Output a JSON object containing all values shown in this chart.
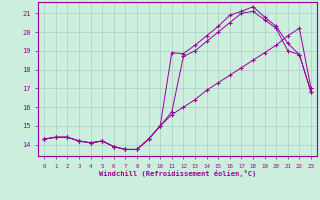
{
  "xlabel": "Windchill (Refroidissement éolien,°C)",
  "xlim": [
    -0.5,
    23.5
  ],
  "ylim": [
    13.4,
    21.6
  ],
  "xticks": [
    0,
    1,
    2,
    3,
    4,
    5,
    6,
    7,
    8,
    9,
    10,
    11,
    12,
    13,
    14,
    15,
    16,
    17,
    18,
    19,
    20,
    21,
    22,
    23
  ],
  "yticks": [
    14,
    15,
    16,
    17,
    18,
    19,
    20,
    21
  ],
  "bg_color": "#cceedd",
  "grid_color": "#aacccc",
  "line_color": "#990099",
  "line1_x": [
    0,
    1,
    2,
    3,
    4,
    5,
    6,
    7,
    8,
    9,
    10,
    11,
    12,
    13,
    14,
    15,
    16,
    17,
    18,
    19,
    20,
    21,
    22,
    23
  ],
  "line1_y": [
    14.3,
    14.4,
    14.4,
    14.2,
    14.1,
    14.2,
    13.9,
    13.75,
    13.75,
    14.3,
    15.0,
    15.6,
    16.0,
    16.4,
    16.9,
    17.3,
    17.7,
    18.1,
    18.5,
    18.9,
    19.3,
    19.8,
    20.2,
    17.0
  ],
  "line2_x": [
    0,
    1,
    2,
    3,
    4,
    5,
    6,
    7,
    8,
    9,
    10,
    11,
    12,
    13,
    14,
    15,
    16,
    17,
    18,
    19,
    20,
    21,
    22,
    23
  ],
  "line2_y": [
    14.3,
    14.4,
    14.4,
    14.2,
    14.1,
    14.2,
    13.9,
    13.75,
    13.75,
    14.3,
    15.0,
    18.9,
    18.85,
    19.3,
    19.8,
    20.3,
    20.9,
    21.1,
    21.35,
    20.8,
    20.3,
    19.4,
    18.8,
    16.8
  ],
  "line3_x": [
    0,
    1,
    2,
    3,
    4,
    5,
    6,
    7,
    8,
    9,
    10,
    11,
    12,
    13,
    14,
    15,
    16,
    17,
    18,
    19,
    20,
    21,
    22,
    23
  ],
  "line3_y": [
    14.3,
    14.4,
    14.4,
    14.2,
    14.1,
    14.2,
    13.9,
    13.75,
    13.75,
    14.3,
    15.0,
    15.75,
    18.7,
    19.0,
    19.5,
    20.0,
    20.5,
    21.0,
    21.1,
    20.65,
    20.2,
    19.0,
    18.8,
    16.8
  ]
}
